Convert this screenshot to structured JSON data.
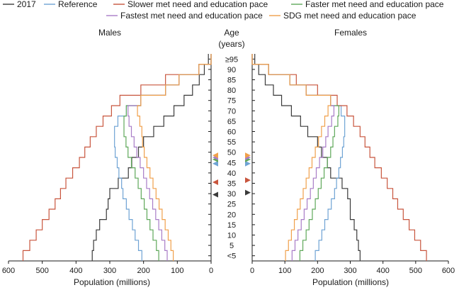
{
  "chart_data": {
    "type": "line",
    "subtype": "population-pyramid-step",
    "left_panel": {
      "title": "Males"
    },
    "right_panel": {
      "title": "Females"
    },
    "center_axis": {
      "title_line1": "Age",
      "title_line2": "(years)",
      "age_groups": [
        "<5",
        "5",
        "10",
        "15",
        "20",
        "25",
        "30",
        "35",
        "40",
        "45",
        "50",
        "55",
        "60",
        "65",
        "70",
        "75",
        "80",
        "85",
        "90",
        "≥95"
      ]
    },
    "xlabel": "Population (millions)",
    "xlim": [
      0,
      600
    ],
    "xticks": [
      "600",
      "500",
      "400",
      "300",
      "200",
      "100",
      "0"
    ],
    "xticks_right": [
      "0",
      "100",
      "200",
      "300",
      "400",
      "500",
      "600"
    ],
    "grid": false,
    "legend_position": "top",
    "series": [
      {
        "name": "2017",
        "color": "#3a3a3a",
        "males": [
          352,
          348,
          340,
          330,
          310,
          305,
          300,
          275,
          245,
          235,
          215,
          200,
          170,
          140,
          110,
          80,
          55,
          35,
          20,
          8
        ],
        "females": [
          330,
          325,
          320,
          312,
          300,
          300,
          292,
          275,
          240,
          230,
          212,
          200,
          170,
          148,
          120,
          90,
          65,
          40,
          20,
          8
        ],
        "pyramid_marker_age": {
          "males": 32,
          "females": 33
        }
      },
      {
        "name": "Reference",
        "color": "#6fa3d4",
        "males": [
          205,
          215,
          225,
          233,
          243,
          251,
          261,
          265,
          273,
          278,
          284,
          286,
          286,
          276,
          251,
          208,
          135,
          95,
          36,
          0
        ],
        "females": [
          193,
          204,
          213,
          222,
          232,
          242,
          252,
          258,
          265,
          270,
          276,
          280,
          283,
          283,
          272,
          240,
          165,
          115,
          50,
          0
        ],
        "pyramid_marker_age": {
          "males": 47,
          "females": 47
        }
      },
      {
        "name": "Slower met need and education pace",
        "color": "#c8553d",
        "males": [
          557,
          537,
          518,
          500,
          480,
          462,
          446,
          430,
          410,
          390,
          374,
          358,
          340,
          320,
          295,
          270,
          208,
          135,
          36,
          0
        ],
        "females": [
          533,
          515,
          497,
          480,
          462,
          445,
          430,
          413,
          395,
          375,
          360,
          345,
          330,
          310,
          290,
          260,
          200,
          135,
          50,
          0
        ],
        "pyramid_marker_age": {
          "males": 38,
          "females": 39
        }
      },
      {
        "name": "Faster met need and education pace",
        "color": "#5fa85a",
        "males": [
          155,
          162,
          172,
          181,
          190,
          198,
          207,
          216,
          225,
          236,
          246,
          252,
          258,
          258,
          251,
          208,
          135,
          95,
          36,
          0
        ],
        "females": [
          146,
          155,
          165,
          174,
          184,
          193,
          202,
          211,
          220,
          230,
          240,
          247,
          252,
          262,
          265,
          240,
          165,
          115,
          50,
          0
        ],
        "pyramid_marker_age": {
          "males": 49,
          "females": 49
        }
      },
      {
        "name": "Fastest met need and education pace",
        "color": "#a87cc7",
        "males": [
          130,
          137,
          146,
          155,
          164,
          173,
          182,
          191,
          200,
          210,
          220,
          228,
          236,
          243,
          246,
          208,
          135,
          95,
          36,
          0
        ],
        "females": [
          122,
          131,
          140,
          150,
          159,
          168,
          178,
          187,
          196,
          206,
          216,
          225,
          232,
          243,
          250,
          240,
          165,
          115,
          50,
          0
        ],
        "pyramid_marker_age": {
          "males": 50,
          "females": 50
        }
      },
      {
        "name": "SDG met need and education pace",
        "color": "#f0a04b",
        "males": [
          112,
          119,
          127,
          136,
          145,
          154,
          163,
          172,
          181,
          190,
          198,
          203,
          205,
          211,
          218,
          208,
          135,
          95,
          36,
          0
        ],
        "females": [
          102,
          111,
          120,
          129,
          138,
          147,
          156,
          165,
          174,
          183,
          193,
          203,
          212,
          222,
          232,
          240,
          165,
          115,
          50,
          0
        ],
        "pyramid_marker_age": {
          "males": 51,
          "females": 51
        }
      }
    ]
  }
}
